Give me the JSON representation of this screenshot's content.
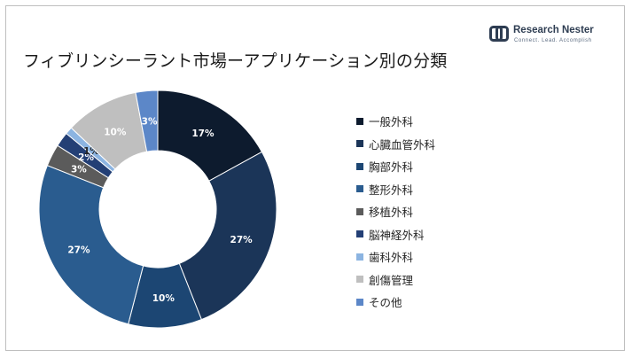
{
  "title": "フィブリンシーラント市場ーアプリケーション別の分類",
  "logo": {
    "name": "Research Nester",
    "tagline": "Connect. Lead. Accomplish"
  },
  "chart_data": {
    "type": "donut",
    "title": "フィブリンシーラント市場ーアプリケーション別の分類",
    "legend_position": "right",
    "start_angle_deg": 0,
    "direction": "clockwise",
    "categories": [
      "一般外科",
      "心臓血管外科",
      "胸部外科",
      "整形外科",
      "移植外科",
      "脳神経外科",
      "歯科外科",
      "創傷管理",
      "その他"
    ],
    "values": [
      17,
      27,
      10,
      27,
      3,
      2,
      1,
      10,
      3
    ],
    "labels": [
      "17%",
      "27%",
      "10%",
      "27%",
      "3%",
      "2%",
      "1%",
      "10%",
      "3%"
    ],
    "colors": [
      "#0d1b2e",
      "#1b3558",
      "#1c4673",
      "#2a5c8f",
      "#5b5b5b",
      "#233f75",
      "#8cb4e1",
      "#bfbfbf",
      "#5c87c8"
    ],
    "label_colors": [
      "#ffffff",
      "#ffffff",
      "#ffffff",
      "#ffffff",
      "#ffffff",
      "#ffffff",
      "#262626",
      "#ffffff",
      "#ffffff"
    ]
  }
}
